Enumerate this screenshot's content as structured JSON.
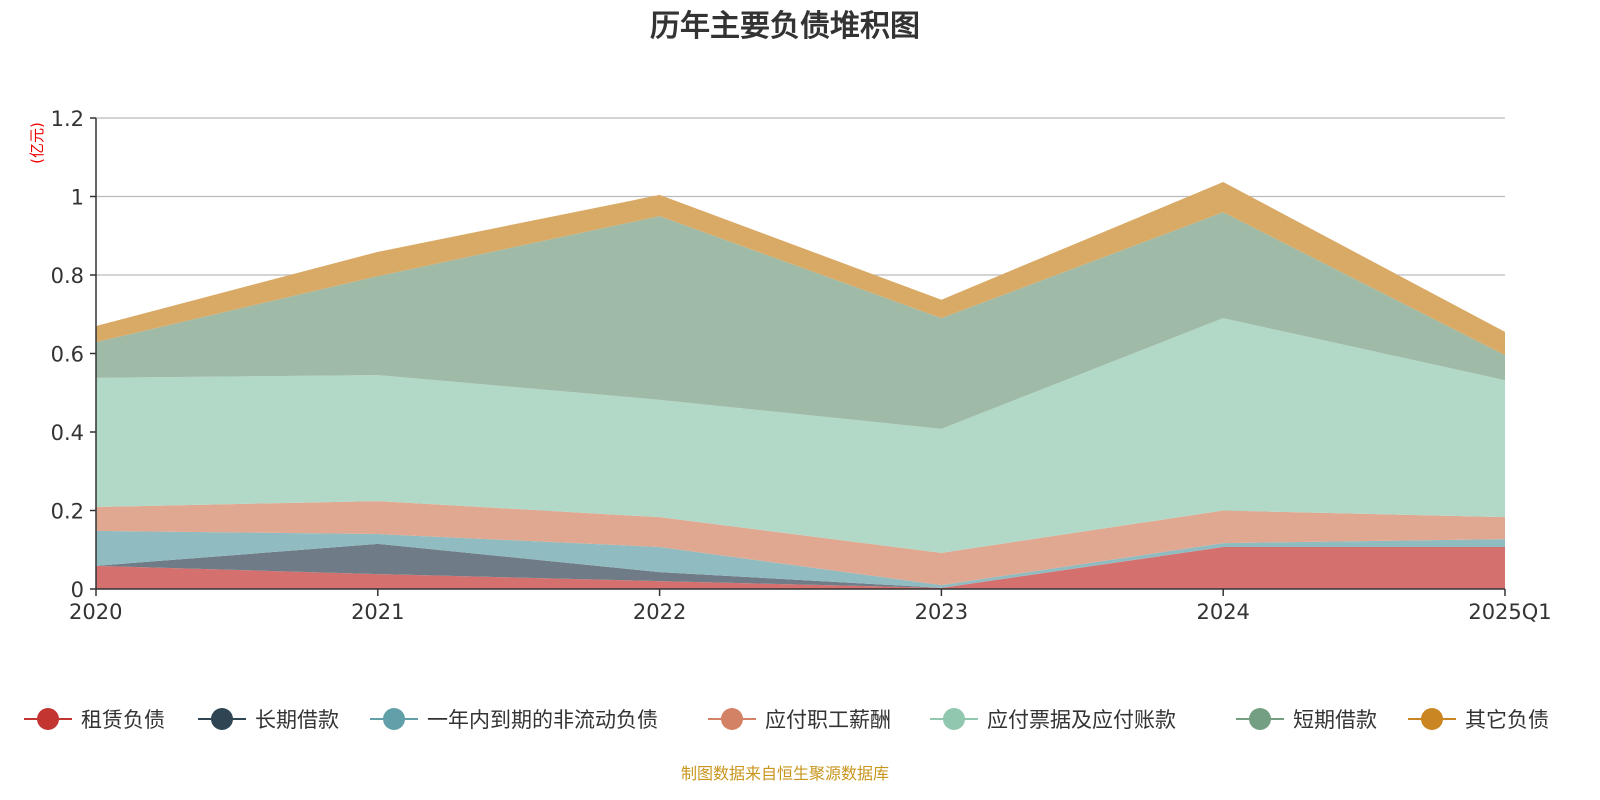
{
  "chart_data": {
    "type": "area",
    "stacked": true,
    "title": "历年主要负债堆积图",
    "ylabel": "(亿元)",
    "xlabel": "",
    "categories": [
      "2020",
      "2021",
      "2022",
      "2023",
      "2024",
      "2025Q1"
    ],
    "ylim": [
      0,
      1.2
    ],
    "yticks": [
      "0",
      "0.2",
      "0.4",
      "0.6",
      "0.8",
      "1",
      "1.2"
    ],
    "ytick_values": [
      0,
      0.2,
      0.4,
      0.6,
      0.8,
      1.0,
      1.2
    ],
    "grid": true,
    "legend_position": "bottom",
    "series": [
      {
        "name": "租赁负债",
        "color": "#c23531",
        "fill": "#d4716f",
        "values": [
          0.059,
          0.038,
          0.02,
          0.003,
          0.107,
          0.107
        ]
      },
      {
        "name": "长期借款",
        "color": "#2f4554",
        "fill": "#6f7c87",
        "values": [
          0.0,
          0.077,
          0.023,
          0.0,
          0.0,
          0.0
        ]
      },
      {
        "name": "一年内到期的非流动负债",
        "color": "#61a0a8",
        "fill": "#90bcc1",
        "values": [
          0.089,
          0.025,
          0.064,
          0.007,
          0.01,
          0.02
        ]
      },
      {
        "name": "应付职工薪酬",
        "color": "#d48265",
        "fill": "#e0a891",
        "values": [
          0.061,
          0.084,
          0.076,
          0.082,
          0.083,
          0.056
        ]
      },
      {
        "name": "应付票据及应付账款",
        "color": "#91c7ae",
        "fill": "#b2d9c7",
        "values": [
          0.329,
          0.321,
          0.299,
          0.316,
          0.49,
          0.349
        ]
      },
      {
        "name": "短期借款",
        "color": "#749f83",
        "fill": "#9fbba8",
        "values": [
          0.091,
          0.252,
          0.468,
          0.282,
          0.27,
          0.064
        ]
      },
      {
        "name": "其它负债",
        "color": "#ca8622",
        "fill": "#d9aa65",
        "values": [
          0.041,
          0.062,
          0.054,
          0.047,
          0.077,
          0.059
        ]
      }
    ],
    "source_note": "制图数据来自恒生聚源数据库"
  }
}
